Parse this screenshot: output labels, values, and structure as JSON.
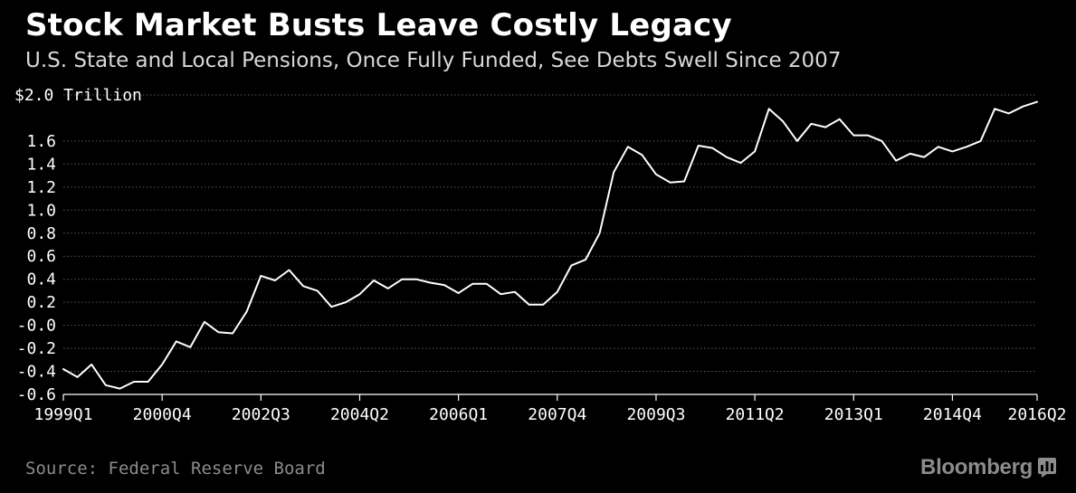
{
  "header": {
    "title": "Stock Market Busts Leave Costly Legacy",
    "subtitle": "U.S. State and Local Pensions, Once Fully Funded, See Debts Swell Since 2007"
  },
  "footer": {
    "source": "Source: Federal Reserve Board",
    "brand": "Bloomberg",
    "brand_icon": "bar-chart-icon"
  },
  "colors": {
    "background": "#000000",
    "line": "#ffffff",
    "grid": "#5a5a5a",
    "muted_text": "#8c8c8c"
  },
  "chart_data": {
    "type": "line",
    "title": "Stock Market Busts Leave Costly Legacy",
    "subtitle": "U.S. State and Local Pensions, Once Fully Funded, See Debts Swell Since 2007",
    "ylabel": "Trillion",
    "unit_label": "$2.0 Trillion",
    "ylim": [
      -0.6,
      2.0
    ],
    "y_ticks": [
      {
        "value": 2.0,
        "label": ""
      },
      {
        "value": 1.6,
        "label": "1.6"
      },
      {
        "value": 1.4,
        "label": "1.4"
      },
      {
        "value": 1.2,
        "label": "1.2"
      },
      {
        "value": 1.0,
        "label": "1.0"
      },
      {
        "value": 0.8,
        "label": "0.8"
      },
      {
        "value": 0.6,
        "label": "0.6"
      },
      {
        "value": 0.4,
        "label": "0.4"
      },
      {
        "value": 0.2,
        "label": "0.2"
      },
      {
        "value": 0.0,
        "label": "-0.0"
      },
      {
        "value": -0.2,
        "label": "-0.2"
      },
      {
        "value": -0.4,
        "label": "-0.4"
      },
      {
        "value": -0.6,
        "label": "-0.6"
      }
    ],
    "x_tick_labels": [
      "1999Q1",
      "2000Q4",
      "2002Q3",
      "2004Q2",
      "2006Q1",
      "2007Q4",
      "2009Q3",
      "2011Q2",
      "2013Q1",
      "2014Q4",
      "2016Q2"
    ],
    "x_tick_index": [
      0,
      7,
      14,
      21,
      28,
      35,
      42,
      49,
      56,
      63,
      69
    ],
    "grid": true,
    "legend": "none",
    "x": [
      "1999Q1",
      "1999Q2",
      "1999Q3",
      "1999Q4",
      "2000Q1",
      "2000Q2",
      "2000Q3",
      "2000Q4",
      "2001Q1",
      "2001Q2",
      "2001Q3",
      "2001Q4",
      "2002Q1",
      "2002Q2",
      "2002Q3",
      "2002Q4",
      "2003Q1",
      "2003Q2",
      "2003Q3",
      "2003Q4",
      "2004Q1",
      "2004Q2",
      "2004Q3",
      "2004Q4",
      "2005Q1",
      "2005Q2",
      "2005Q3",
      "2005Q4",
      "2006Q1",
      "2006Q2",
      "2006Q3",
      "2006Q4",
      "2007Q1",
      "2007Q2",
      "2007Q3",
      "2007Q4",
      "2008Q1",
      "2008Q2",
      "2008Q3",
      "2008Q4",
      "2009Q1",
      "2009Q2",
      "2009Q3",
      "2009Q4",
      "2010Q1",
      "2010Q2",
      "2010Q3",
      "2010Q4",
      "2011Q1",
      "2011Q2",
      "2011Q3",
      "2011Q4",
      "2012Q1",
      "2012Q2",
      "2012Q3",
      "2012Q4",
      "2013Q1",
      "2013Q2",
      "2013Q3",
      "2013Q4",
      "2014Q1",
      "2014Q2",
      "2014Q3",
      "2014Q4",
      "2015Q1",
      "2015Q2",
      "2015Q3",
      "2015Q4",
      "2016Q1",
      "2016Q2"
    ],
    "values": [
      -0.38,
      -0.45,
      -0.34,
      -0.52,
      -0.55,
      -0.49,
      -0.49,
      -0.34,
      -0.14,
      -0.19,
      0.03,
      -0.06,
      -0.07,
      0.12,
      0.43,
      0.39,
      0.48,
      0.34,
      0.3,
      0.16,
      0.2,
      0.27,
      0.39,
      0.32,
      0.4,
      0.4,
      0.37,
      0.35,
      0.28,
      0.36,
      0.36,
      0.27,
      0.29,
      0.18,
      0.18,
      0.29,
      0.52,
      0.57,
      0.8,
      1.33,
      1.55,
      1.48,
      1.31,
      1.24,
      1.25,
      1.56,
      1.54,
      1.46,
      1.41,
      1.51,
      1.88,
      1.77,
      1.6,
      1.75,
      1.72,
      1.79,
      1.65,
      1.65,
      1.6,
      1.43,
      1.49,
      1.46,
      1.55,
      1.51,
      1.55,
      1.6,
      1.88,
      1.84,
      1.9,
      1.94
    ]
  }
}
